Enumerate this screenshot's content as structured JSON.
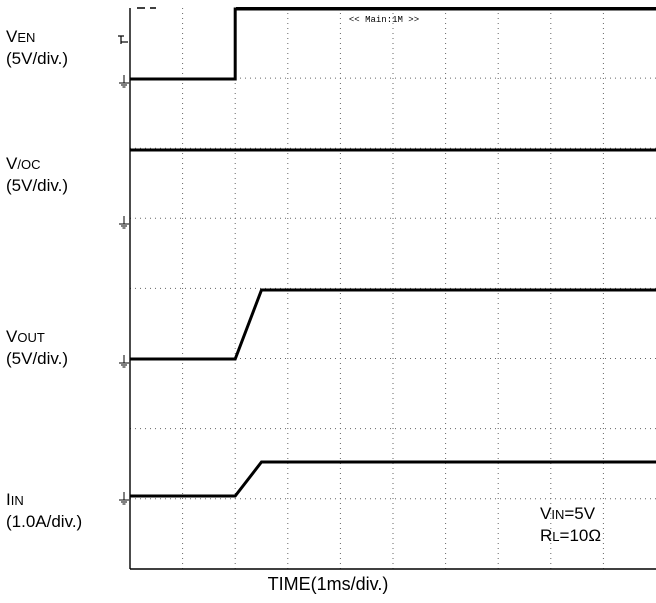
{
  "chart_data": {
    "type": "line",
    "title": "",
    "xlabel": "TIME(1ms/div.)",
    "ylabel": "",
    "xlim": [
      0,
      10
    ],
    "time_unit": "ms",
    "grid": true,
    "top_marker": "<< Main:1M >>",
    "conditions": {
      "vin": {
        "prefix": "V",
        "sub": "IN",
        "suffix": "=5V"
      },
      "rl": {
        "prefix": "R",
        "sub": "L",
        "suffix": "=10Ω"
      }
    },
    "series": [
      {
        "name_main": "V",
        "name_sub": "EN",
        "scale": "(5V/div.)",
        "x": [
          0,
          2.0,
          2.0,
          10
        ],
        "y": [
          0,
          0,
          5,
          5
        ]
      },
      {
        "name_main": "V",
        "name_sub": "/OC",
        "scale": "(5V/div.)",
        "x": [
          0,
          10
        ],
        "y": [
          5,
          5
        ]
      },
      {
        "name_main": "V",
        "name_sub": "OUT",
        "scale": "(5V/div.)",
        "x": [
          0,
          2.0,
          2.5,
          10
        ],
        "y": [
          0,
          0,
          5,
          5
        ]
      },
      {
        "name_main": "I",
        "name_sub": "IN",
        "scale": "(1.0A/div.)",
        "x": [
          0,
          2.0,
          2.5,
          10
        ],
        "y": [
          0,
          0,
          0.5,
          0.5
        ]
      }
    ]
  }
}
